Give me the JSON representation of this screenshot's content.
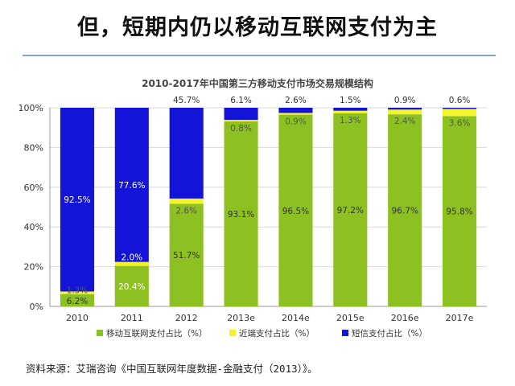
{
  "headline": "但，短期内仍以移动互联网支付为主",
  "source": "资料来源：艾瑞咨询《中国互联网年度数据-金融支付（2013）》。",
  "chart_data": {
    "type": "bar",
    "stacked": true,
    "title": "2010-2017年中国第三方移动支付市场交易规模结构",
    "categories": [
      "2010",
      "2011",
      "2012",
      "2013e",
      "2014e",
      "2015e",
      "2016e",
      "2017e"
    ],
    "y_ticks": [
      "0%",
      "20%",
      "40%",
      "60%",
      "80%",
      "100%"
    ],
    "ylim": [
      0,
      100
    ],
    "grid": true,
    "legend_position": "bottom",
    "series": [
      {
        "name": "移动互联网支付占比（%）",
        "color": "#8dc021",
        "values": [
          6.2,
          20.4,
          51.7,
          93.1,
          96.5,
          97.2,
          96.7,
          95.8
        ],
        "labels": [
          "6.2%",
          "20.4%",
          "51.7%",
          "93.1%",
          "96.5%",
          "97.2%",
          "96.7%",
          "95.8%"
        ]
      },
      {
        "name": "近端支付占比（%）",
        "color": "#f4f42c",
        "values": [
          1.3,
          2.0,
          2.6,
          0.8,
          0.9,
          1.3,
          2.4,
          3.6
        ],
        "labels": [
          "1.3%",
          "2.0%",
          "2.6%",
          "0.8%",
          "0.9%",
          "1.3%",
          "2.4%",
          "3.6%"
        ]
      },
      {
        "name": "短信支付占比（%）",
        "color": "#1414d8",
        "values": [
          92.5,
          77.6,
          45.7,
          6.1,
          2.6,
          1.5,
          0.9,
          0.6
        ],
        "labels": [
          "92.5%",
          "77.6%",
          "45.7%",
          "6.1%",
          "2.6%",
          "1.5%",
          "0.9%",
          "0.6%"
        ]
      }
    ]
  }
}
